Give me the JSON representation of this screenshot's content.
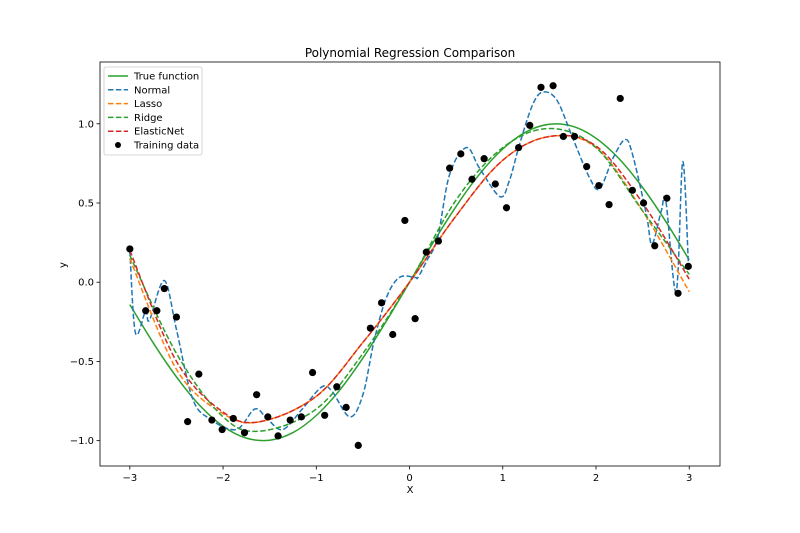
{
  "chart_data": {
    "type": "line",
    "title": "Polynomial Regression Comparison",
    "xlabel": "X",
    "ylabel": "y",
    "xlim": [
      -3.32,
      3.33
    ],
    "ylim": [
      -1.16,
      1.39
    ],
    "xticks": [
      -3,
      -2,
      -1,
      0,
      1,
      2,
      3
    ],
    "xtick_labels": [
      "−3",
      "−2",
      "−1",
      "0",
      "1",
      "2",
      "3"
    ],
    "yticks": [
      -1.0,
      -0.5,
      0.0,
      0.5,
      1.0
    ],
    "ytick_labels": [
      "−1.0",
      "−0.5",
      "0.0",
      "0.5",
      "1.0"
    ],
    "grid": false,
    "legend_placement": "top-left",
    "series": [
      {
        "name": "True function",
        "color": "#2ca02c",
        "style": "solid",
        "x": [
          -3,
          -2.75,
          -2.5,
          -2.25,
          -2,
          -1.75,
          -1.5,
          -1.25,
          -1,
          -0.75,
          -0.5,
          -0.25,
          0,
          0.25,
          0.5,
          0.75,
          1,
          1.25,
          1.5,
          1.75,
          2,
          2.25,
          2.5,
          2.75,
          3
        ],
        "y": [
          -0.141,
          -0.382,
          -0.598,
          -0.778,
          -0.909,
          -0.984,
          -0.997,
          -0.949,
          -0.841,
          -0.682,
          -0.479,
          -0.247,
          0,
          0.247,
          0.479,
          0.682,
          0.841,
          0.949,
          0.997,
          0.984,
          0.909,
          0.778,
          0.598,
          0.382,
          0.141
        ]
      },
      {
        "name": "Normal",
        "color": "#1f77b4",
        "style": "dashed",
        "x": [
          -3,
          -2.94,
          -2.83,
          -2.79,
          -2.63,
          -2.5,
          -2.33,
          -2.15,
          -1.86,
          -1.66,
          -1.53,
          -1.36,
          -1.15,
          -0.94,
          -0.83,
          -0.64,
          -0.5,
          -0.38,
          -0.25,
          -0.11,
          0.06,
          0.09,
          0.18,
          0.3,
          0.43,
          0.61,
          0.75,
          0.97,
          1.07,
          1.18,
          1.32,
          1.43,
          1.58,
          1.75,
          1.93,
          2.04,
          2.18,
          2.31,
          2.39,
          2.54,
          2.6,
          2.7,
          2.75,
          2.86,
          2.93,
          2.99
        ],
        "y": [
          0.2,
          -0.32,
          -0.18,
          -0.24,
          0.01,
          -0.3,
          -0.73,
          -0.86,
          -0.93,
          -0.8,
          -0.86,
          -0.93,
          -0.8,
          -0.66,
          -0.69,
          -0.85,
          -0.71,
          -0.37,
          -0.1,
          0.03,
          0.03,
          0.03,
          0.13,
          0.28,
          0.68,
          0.85,
          0.72,
          0.54,
          0.64,
          0.87,
          1.12,
          1.2,
          1.15,
          0.91,
          0.66,
          0.59,
          0.78,
          0.9,
          0.81,
          0.43,
          0.24,
          0.45,
          0.51,
          -0.06,
          0.76,
          0.13
        ]
      },
      {
        "name": "Lasso",
        "color": "#ff7f0e",
        "style": "dashed",
        "x": [
          -3,
          -2.5,
          -2,
          -1.6,
          -1,
          -0.5,
          0,
          0.5,
          1,
          1.5,
          2,
          2.5,
          3
        ],
        "y": [
          0.15,
          -0.55,
          -0.83,
          -0.88,
          -0.72,
          -0.38,
          0.0,
          0.42,
          0.77,
          0.92,
          0.85,
          0.45,
          -0.06
        ]
      },
      {
        "name": "Ridge",
        "color": "#2ca02c",
        "style": "dashed",
        "x": [
          -3,
          -2.5,
          -2,
          -1.6,
          -1,
          -0.5,
          0,
          0.5,
          1,
          1.5,
          2,
          2.5,
          3
        ],
        "y": [
          0.17,
          -0.45,
          -0.85,
          -0.94,
          -0.8,
          -0.45,
          0.0,
          0.52,
          0.85,
          0.97,
          0.85,
          0.45,
          0.05
        ]
      },
      {
        "name": "ElasticNet",
        "color": "#d62728",
        "style": "dashed",
        "x": [
          -3,
          -2.5,
          -2,
          -1.6,
          -1,
          -0.5,
          0,
          0.5,
          1,
          1.5,
          2,
          2.5,
          3
        ],
        "y": [
          0.2,
          -0.5,
          -0.82,
          -0.88,
          -0.72,
          -0.38,
          0.0,
          0.42,
          0.77,
          0.92,
          0.86,
          0.5,
          0.02
        ]
      }
    ],
    "scatter": {
      "name": "Training data",
      "color": "#000000",
      "x": [
        -3.0,
        -2.83,
        -2.71,
        -2.63,
        -2.5,
        -2.38,
        -2.26,
        -2.12,
        -2.01,
        -1.89,
        -1.77,
        -1.64,
        -1.52,
        -1.41,
        -1.28,
        -1.16,
        -1.04,
        -0.91,
        -0.78,
        -0.68,
        -0.55,
        -0.42,
        -0.3,
        -0.18,
        -0.05,
        0.06,
        0.18,
        0.31,
        0.43,
        0.55,
        0.67,
        0.8,
        0.92,
        1.04,
        1.17,
        1.29,
        1.41,
        1.54,
        1.65,
        1.77,
        1.9,
        2.03,
        2.14,
        2.26,
        2.39,
        2.51,
        2.63,
        2.76,
        2.88,
        2.99
      ],
      "y": [
        0.21,
        -0.18,
        -0.18,
        -0.04,
        -0.22,
        -0.88,
        -0.58,
        -0.87,
        -0.93,
        -0.86,
        -0.95,
        -0.71,
        -0.85,
        -0.97,
        -0.87,
        -0.85,
        -0.57,
        -0.84,
        -0.66,
        -0.79,
        -1.03,
        -0.29,
        -0.13,
        -0.33,
        0.39,
        -0.23,
        0.19,
        0.26,
        0.72,
        0.81,
        0.65,
        0.78,
        0.62,
        0.47,
        0.85,
        0.99,
        1.23,
        1.24,
        0.92,
        0.92,
        0.73,
        0.61,
        0.49,
        1.16,
        0.58,
        0.5,
        0.23,
        0.53,
        -0.07,
        0.1
      ]
    }
  }
}
